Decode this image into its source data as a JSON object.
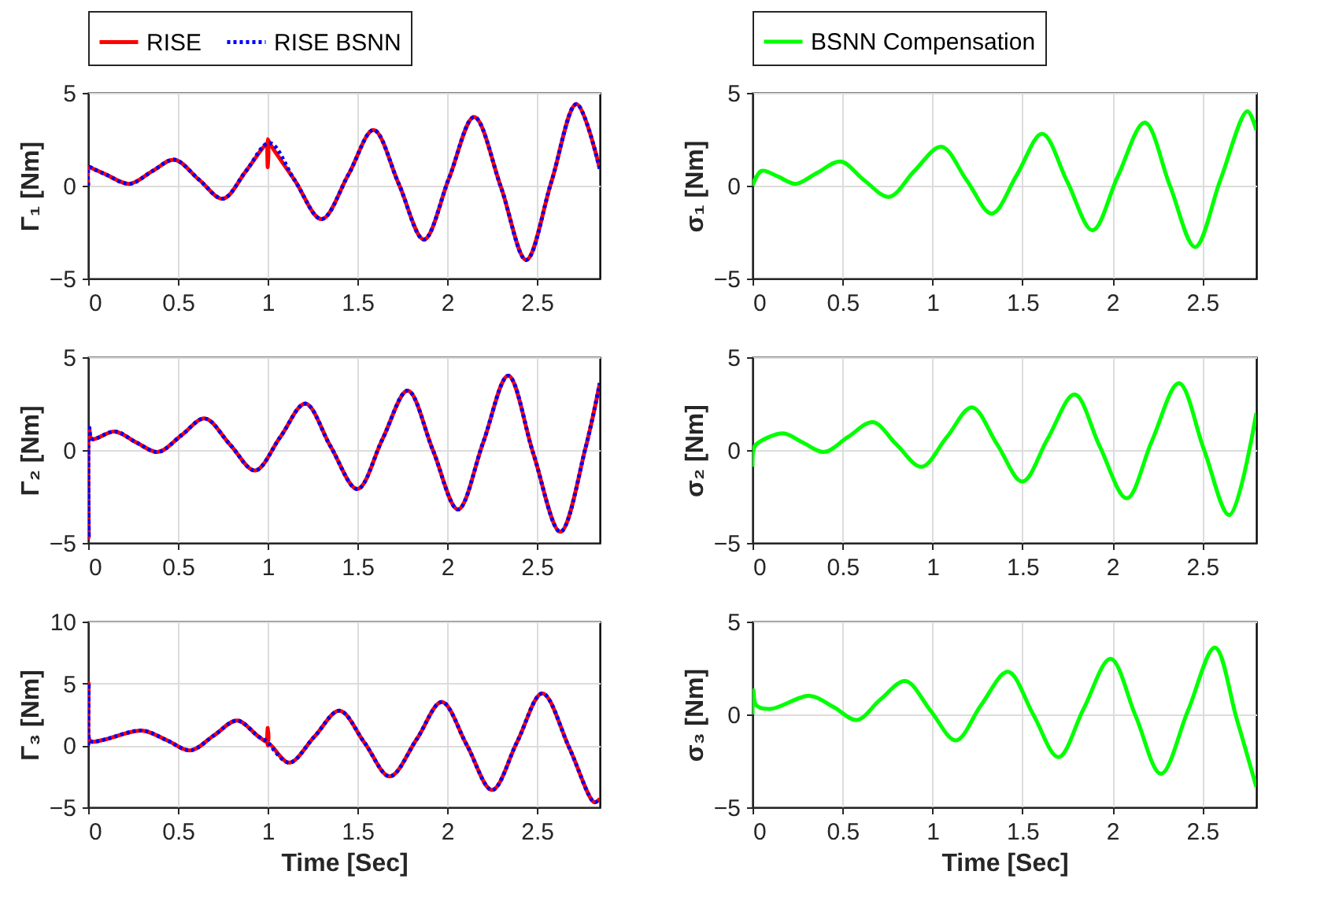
{
  "chart_data": [
    {
      "type": "line",
      "ylabel": "Γ₁ [Nm]",
      "xlim": [
        0,
        2.85
      ],
      "ylim": [
        -5,
        5
      ],
      "xticks": [
        0,
        0.5,
        1,
        1.5,
        2,
        2.5
      ],
      "yticks": [
        -5,
        0,
        5
      ],
      "grid": true,
      "legend": "top",
      "series": [
        {
          "name": "RISE",
          "color": "#ff0000",
          "line_style": "solid",
          "x": [
            0,
            0.005,
            0.03,
            0.1,
            0.23,
            0.36,
            0.48,
            0.62,
            0.75,
            0.88,
            0.99,
            1.0,
            1.0,
            1.0,
            1.01,
            1.15,
            1.3,
            1.45,
            1.59,
            1.73,
            1.87,
            2.01,
            2.15,
            2.3,
            2.44,
            2.58,
            2.72,
            2.85
          ],
          "values": [
            0,
            1.0,
            0.9,
            0.6,
            0.1,
            0.8,
            1.4,
            0.3,
            -0.7,
            0.8,
            2.2,
            2.2,
            1.0,
            2.5,
            2.3,
            0.3,
            -1.8,
            0.6,
            3.0,
            0.1,
            -2.9,
            0.4,
            3.7,
            -0.1,
            -4.0,
            0.2,
            4.4,
            0.9
          ]
        },
        {
          "name": "RISE BSNN",
          "color": "#0000ff",
          "line_style": "dotted",
          "x": [
            0,
            0.005,
            0.03,
            0.1,
            0.23,
            0.36,
            0.48,
            0.62,
            0.75,
            0.88,
            1.01,
            1.15,
            1.3,
            1.45,
            1.59,
            1.73,
            1.87,
            2.01,
            2.15,
            2.3,
            2.44,
            2.58,
            2.72,
            2.85
          ],
          "values": [
            0,
            1.0,
            0.9,
            0.6,
            0.1,
            0.8,
            1.4,
            0.3,
            -0.7,
            0.8,
            2.3,
            0.3,
            -1.8,
            0.6,
            3.0,
            0.1,
            -2.9,
            0.4,
            3.7,
            -0.1,
            -4.0,
            0.2,
            4.4,
            0.9
          ]
        }
      ]
    },
    {
      "type": "line",
      "ylabel": "σ₁ [Nm]",
      "xlim": [
        0,
        2.8
      ],
      "ylim": [
        -5,
        5
      ],
      "xticks": [
        0,
        0.5,
        1,
        1.5,
        2,
        2.5
      ],
      "yticks": [
        -5,
        0,
        5
      ],
      "grid": true,
      "legend": "top",
      "series": [
        {
          "name": "BSNN Compensation",
          "color": "#00ff00",
          "line_style": "solid",
          "x": [
            0,
            0.05,
            0.14,
            0.24,
            0.36,
            0.49,
            0.62,
            0.76,
            0.9,
            1.05,
            1.19,
            1.33,
            1.47,
            1.61,
            1.75,
            1.89,
            2.03,
            2.18,
            2.32,
            2.46,
            2.6,
            2.75,
            2.8
          ],
          "values": [
            0,
            0.8,
            0.5,
            0.1,
            0.7,
            1.3,
            0.3,
            -0.6,
            0.8,
            2.1,
            0.3,
            -1.5,
            0.6,
            2.8,
            0.2,
            -2.4,
            0.5,
            3.4,
            0.0,
            -3.3,
            0.3,
            4.0,
            3.0
          ]
        }
      ]
    },
    {
      "type": "line",
      "ylabel": "Γ₂ [Nm]",
      "xlim": [
        0,
        2.85
      ],
      "ylim": [
        -5,
        5
      ],
      "xticks": [
        0,
        0.5,
        1,
        1.5,
        2,
        2.5
      ],
      "yticks": [
        -5,
        0,
        5
      ],
      "grid": true,
      "series": [
        {
          "color": "#ff0000",
          "line_style": "solid",
          "x": [
            0,
            0.003,
            0.006,
            0.02,
            0.15,
            0.27,
            0.39,
            0.52,
            0.65,
            0.79,
            0.93,
            1.07,
            1.21,
            1.35,
            1.5,
            1.64,
            1.78,
            1.92,
            2.06,
            2.2,
            2.34,
            2.48,
            2.63,
            2.77,
            2.85
          ],
          "values": [
            0,
            -4.7,
            1.2,
            0.6,
            1.0,
            0.4,
            -0.1,
            0.8,
            1.7,
            0.3,
            -1.1,
            0.7,
            2.5,
            0.2,
            -2.1,
            0.6,
            3.2,
            0,
            -3.2,
            0.4,
            4.0,
            -0.2,
            -4.4,
            0.1,
            3.6
          ]
        },
        {
          "color": "#0000ff",
          "line_style": "dotted",
          "x": [
            0,
            0.003,
            0.006,
            0.02,
            0.15,
            0.27,
            0.39,
            0.52,
            0.65,
            0.79,
            0.93,
            1.07,
            1.21,
            1.35,
            1.5,
            1.64,
            1.78,
            1.92,
            2.06,
            2.2,
            2.34,
            2.48,
            2.63,
            2.77,
            2.85
          ],
          "values": [
            0,
            -4.7,
            1.2,
            0.6,
            1.0,
            0.4,
            -0.1,
            0.8,
            1.7,
            0.3,
            -1.1,
            0.7,
            2.5,
            0.2,
            -2.1,
            0.6,
            3.2,
            0,
            -3.2,
            0.4,
            4.0,
            -0.2,
            -4.4,
            0.1,
            3.6
          ]
        }
      ]
    },
    {
      "type": "line",
      "ylabel": "σ₂ [Nm]",
      "xlim": [
        0,
        2.8
      ],
      "ylim": [
        -5,
        5
      ],
      "xticks": [
        0,
        0.5,
        1,
        1.5,
        2,
        2.5
      ],
      "yticks": [
        -5,
        0,
        5
      ],
      "grid": true,
      "series": [
        {
          "color": "#00ff00",
          "line_style": "solid",
          "x": [
            0,
            0.005,
            0.02,
            0.17,
            0.28,
            0.4,
            0.53,
            0.67,
            0.8,
            0.94,
            1.08,
            1.22,
            1.36,
            1.5,
            1.64,
            1.79,
            1.93,
            2.08,
            2.22,
            2.37,
            2.51,
            2.65,
            2.8
          ],
          "values": [
            -0.9,
            0.0,
            0.3,
            0.9,
            0.4,
            -0.1,
            0.7,
            1.5,
            0.3,
            -0.9,
            0.7,
            2.3,
            0.3,
            -1.7,
            0.6,
            3.0,
            0.2,
            -2.6,
            0.5,
            3.6,
            0.0,
            -3.5,
            2.0
          ]
        }
      ]
    },
    {
      "type": "line",
      "ylabel": "Γ₃ [Nm]",
      "xlabel": "Time [Sec]",
      "xlim": [
        0,
        2.85
      ],
      "ylim": [
        -5,
        10
      ],
      "xticks": [
        0,
        0.5,
        1,
        1.5,
        2,
        2.5
      ],
      "yticks": [
        -5,
        0,
        5,
        10
      ],
      "grid": true,
      "series": [
        {
          "color": "#ff0000",
          "line_style": "solid",
          "x": [
            0,
            0.003,
            0.006,
            0.02,
            0.1,
            0.3,
            0.44,
            0.57,
            0.7,
            0.83,
            0.95,
            1.0,
            1.0,
            1.0,
            1.01,
            1.12,
            1.26,
            1.4,
            1.54,
            1.68,
            1.83,
            1.97,
            2.11,
            2.25,
            2.39,
            2.53,
            2.68,
            2.82,
            2.85
          ],
          "values": [
            0,
            5.0,
            0.5,
            0.3,
            0.5,
            1.2,
            0.4,
            -0.4,
            0.8,
            2.0,
            0.7,
            0.3,
            1.4,
            0.0,
            0.1,
            -1.4,
            0.7,
            2.8,
            0.2,
            -2.5,
            0.5,
            3.5,
            0,
            -3.6,
            0.3,
            4.2,
            -0.2,
            -4.6,
            -4.3
          ]
        },
        {
          "color": "#0000ff",
          "line_style": "dotted",
          "x": [
            0,
            0.003,
            0.006,
            0.02,
            0.1,
            0.3,
            0.44,
            0.57,
            0.7,
            0.83,
            0.95,
            1.0,
            1.01,
            1.12,
            1.26,
            1.4,
            1.54,
            1.68,
            1.83,
            1.97,
            2.11,
            2.25,
            2.39,
            2.53,
            2.68,
            2.82,
            2.85
          ],
          "values": [
            0,
            5.0,
            0.5,
            0.3,
            0.5,
            1.2,
            0.4,
            -0.4,
            0.8,
            2.0,
            0.7,
            0.3,
            0.1,
            -1.4,
            0.7,
            2.8,
            0.2,
            -2.5,
            0.5,
            3.5,
            0,
            -3.6,
            0.3,
            4.2,
            -0.2,
            -4.6,
            -4.3
          ]
        }
      ]
    },
    {
      "type": "line",
      "ylabel": "σ₃ [Nm]",
      "xlabel": "Time [Sec]",
      "xlim": [
        0,
        2.8
      ],
      "ylim": [
        -5,
        5
      ],
      "xticks": [
        0,
        0.5,
        1,
        1.5,
        2,
        2.5
      ],
      "yticks": [
        -5,
        0,
        5
      ],
      "grid": true,
      "series": [
        {
          "color": "#00ff00",
          "line_style": "solid",
          "x": [
            0,
            0.005,
            0.02,
            0.1,
            0.32,
            0.45,
            0.58,
            0.71,
            0.85,
            0.99,
            1.13,
            1.27,
            1.42,
            1.56,
            1.7,
            1.84,
            1.99,
            2.13,
            2.27,
            2.42,
            2.57,
            2.69,
            2.8
          ],
          "values": [
            0,
            1.3,
            0.5,
            0.3,
            1.0,
            0.4,
            -0.3,
            0.8,
            1.8,
            0.2,
            -1.4,
            0.5,
            2.3,
            0,
            -2.3,
            0.3,
            3.0,
            -0.1,
            -3.2,
            0.2,
            3.6,
            -0.2,
            -3.9
          ]
        }
      ]
    }
  ]
}
